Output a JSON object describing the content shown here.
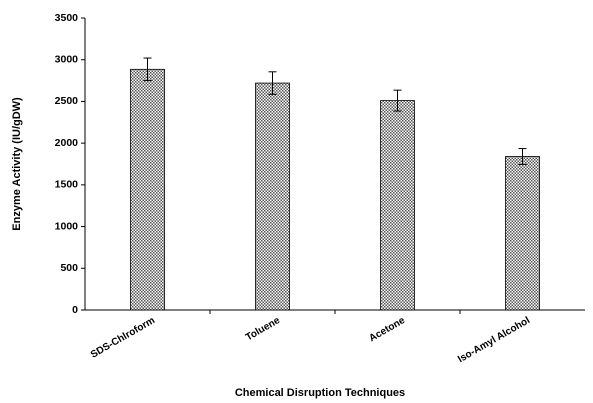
{
  "chart_data": {
    "type": "bar",
    "x_label": "Chemical Disruption Techniques",
    "y_label": "Enzyme Activity (IU/gDW)",
    "categories": [
      "SDS-Chlroform",
      "Toluene",
      "Acetone",
      "Iso-Amyl Alcohol"
    ],
    "values": [
      2885,
      2720,
      2510,
      1840
    ],
    "errors": [
      135,
      135,
      125,
      95
    ],
    "color": "#bdbdbd",
    "ylim": [
      0,
      3500
    ],
    "yticks": [
      0,
      500,
      1000,
      1500,
      2000,
      2500,
      3000,
      3500
    ],
    "grid": false
  }
}
